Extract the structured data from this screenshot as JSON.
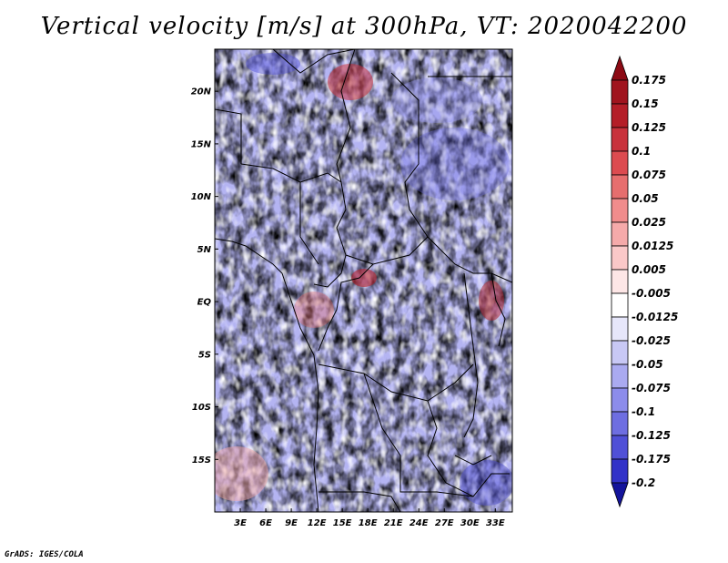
{
  "title": "Vertical velocity [m/s] at 300hPa, VT: 2020042200",
  "credit": "GrADS: IGES/COLA",
  "map": {
    "lat_range": [
      -20,
      24
    ],
    "lon_range": [
      0,
      35
    ],
    "lat_ticks": [
      {
        "value": 20,
        "label": "20N"
      },
      {
        "value": 15,
        "label": "15N"
      },
      {
        "value": 10,
        "label": "10N"
      },
      {
        "value": 5,
        "label": "5N"
      },
      {
        "value": 0,
        "label": "EQ"
      },
      {
        "value": -5,
        "label": "5S"
      },
      {
        "value": -10,
        "label": "10S"
      },
      {
        "value": -15,
        "label": "15S"
      }
    ],
    "lon_ticks": [
      {
        "value": 3,
        "label": "3E"
      },
      {
        "value": 6,
        "label": "6E"
      },
      {
        "value": 9,
        "label": "9E"
      },
      {
        "value": 12,
        "label": "12E"
      },
      {
        "value": 15,
        "label": "15E"
      },
      {
        "value": 18,
        "label": "18E"
      },
      {
        "value": 21,
        "label": "21E"
      },
      {
        "value": 24,
        "label": "24E"
      },
      {
        "value": 27,
        "label": "27E"
      },
      {
        "value": 30,
        "label": "30E"
      },
      {
        "value": 33,
        "label": "33E"
      }
    ]
  },
  "colorbar": {
    "levels": [
      {
        "label": "0.175",
        "color": "#a0141e"
      },
      {
        "label": "0.15",
        "color": "#b41e28"
      },
      {
        "label": "0.125",
        "color": "#c8323c"
      },
      {
        "label": "0.1",
        "color": "#dc4b50"
      },
      {
        "label": "0.075",
        "color": "#e66e6e"
      },
      {
        "label": "0.05",
        "color": "#f08c8c"
      },
      {
        "label": "0.025",
        "color": "#f5aaaa"
      },
      {
        "label": "0.0125",
        "color": "#fac8c8"
      },
      {
        "label": "0.005",
        "color": "#fde6e6"
      },
      {
        "label": "-0.005",
        "color": "#ffffff"
      },
      {
        "label": "-0.0125",
        "color": "#e6e6fa"
      },
      {
        "label": "-0.025",
        "color": "#c8c8f5"
      },
      {
        "label": "-0.05",
        "color": "#aaaaf0"
      },
      {
        "label": "-0.075",
        "color": "#8c8ceb"
      },
      {
        "label": "-0.1",
        "color": "#6e6ee1"
      },
      {
        "label": "-0.125",
        "color": "#5050d7"
      },
      {
        "label": "-0.175",
        "color": "#3232c8"
      },
      {
        "label": "-0.2",
        "color": "#1e1eb4"
      }
    ],
    "top_color": "#8c0a14",
    "bottom_color": "#14149b"
  }
}
